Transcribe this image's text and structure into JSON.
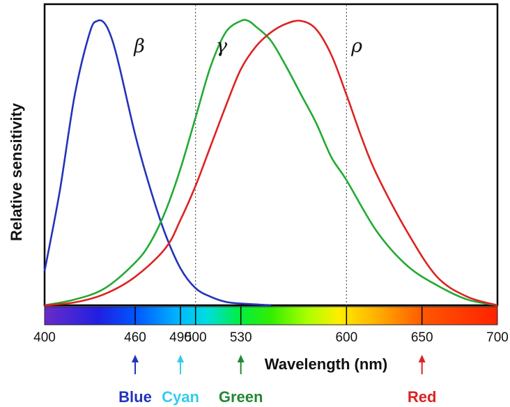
{
  "chart_data": {
    "type": "line",
    "title": "",
    "xlabel": "Wavelength (nm)",
    "ylabel": "Relative sensitivity",
    "xlim": [
      400,
      700
    ],
    "ylim": [
      0,
      1
    ],
    "xticks": [
      400,
      460,
      490,
      500,
      530,
      600,
      650,
      700
    ],
    "reference_lines": [
      500,
      600
    ],
    "series": [
      {
        "name": "β",
        "color": "#2233bb",
        "x": [
          400,
          410,
          420,
          430,
          435,
          440,
          445,
          450,
          460,
          470,
          480,
          490,
          500,
          510,
          520,
          530,
          550
        ],
        "y": [
          0.12,
          0.4,
          0.74,
          0.96,
          1.0,
          0.99,
          0.93,
          0.83,
          0.6,
          0.41,
          0.25,
          0.13,
          0.06,
          0.03,
          0.012,
          0.006,
          0.0
        ]
      },
      {
        "name": "γ",
        "color": "#22aa33",
        "x": [
          400,
          420,
          440,
          460,
          470,
          480,
          490,
          500,
          510,
          520,
          530,
          535,
          540,
          550,
          560,
          570,
          580,
          590,
          600,
          620,
          640,
          660,
          680,
          700
        ],
        "y": [
          0.0,
          0.02,
          0.06,
          0.15,
          0.22,
          0.33,
          0.48,
          0.66,
          0.84,
          0.96,
          1.0,
          1.0,
          0.98,
          0.93,
          0.84,
          0.74,
          0.64,
          0.52,
          0.44,
          0.26,
          0.14,
          0.07,
          0.02,
          0.0
        ]
      },
      {
        "name": "ρ",
        "color": "#dd2222",
        "x": [
          400,
          420,
          440,
          460,
          480,
          490,
          500,
          510,
          520,
          530,
          540,
          550,
          560,
          570,
          580,
          590,
          600,
          610,
          620,
          640,
          660,
          680,
          700
        ],
        "y": [
          0.0,
          0.01,
          0.04,
          0.1,
          0.2,
          0.3,
          0.42,
          0.56,
          0.7,
          0.83,
          0.91,
          0.96,
          0.99,
          1.0,
          0.97,
          0.88,
          0.74,
          0.59,
          0.46,
          0.26,
          0.1,
          0.03,
          0.0
        ]
      }
    ],
    "markers": [
      {
        "label": "Blue",
        "x": 460,
        "color": "#2233bb"
      },
      {
        "label": "Cyan",
        "x": 490,
        "color": "#33ccee"
      },
      {
        "label": "Green",
        "x": 530,
        "color": "#228833"
      },
      {
        "label": "Red",
        "x": 650,
        "color": "#dd2222"
      }
    ],
    "grid": false,
    "legend": "none"
  }
}
